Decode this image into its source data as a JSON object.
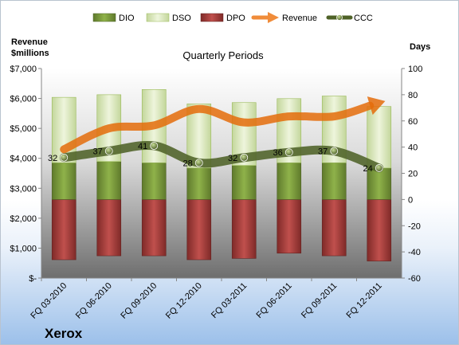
{
  "company_label": "Xerox",
  "chart_data": {
    "type": "bar",
    "title": "Quarterly Periods",
    "left_axis_label_line1": "Revenue",
    "left_axis_label_line2": "$millions",
    "right_axis_label": "Days",
    "left_ylim": [
      0,
      7000
    ],
    "left_ticks": [
      "$-",
      "$1,000",
      "$2,000",
      "$3,000",
      "$4,000",
      "$5,000",
      "$6,000",
      "$7,000"
    ],
    "right_ylim": [
      -60,
      100
    ],
    "right_ticks": [
      "-60",
      "-40",
      "-20",
      "0",
      "20",
      "40",
      "60",
      "80",
      "100"
    ],
    "categories": [
      "FQ 03-2010",
      "FQ 06-2010",
      "FQ 09-2010",
      "FQ 12-2010",
      "FQ 03-2011",
      "FQ 06-2011",
      "FQ 09-2011",
      "FQ 12-2011"
    ],
    "grid": false,
    "legend_position": "top",
    "series": [
      {
        "name": "DIO",
        "kind": "bar",
        "axis": "right",
        "color": "#77933c",
        "values": [
          28,
          29,
          28,
          24,
          26,
          28,
          28,
          24
        ]
      },
      {
        "name": "DSO",
        "kind": "bar",
        "axis": "right",
        "color": "#d7e4bd",
        "values": [
          50,
          51,
          56,
          49,
          48,
          49,
          51,
          47
        ]
      },
      {
        "name": "DPO",
        "kind": "bar",
        "axis": "right",
        "color": "#953735",
        "values": [
          -46,
          -43,
          -43,
          -46,
          -45,
          -41,
          -43,
          -47
        ]
      },
      {
        "name": "Revenue",
        "kind": "line",
        "axis": "left",
        "color": "#e46c0a",
        "values": [
          4300,
          5000,
          5100,
          5650,
          5200,
          5400,
          5400,
          5850
        ]
      },
      {
        "name": "CCC",
        "kind": "line",
        "axis": "right",
        "color": "#4f6228",
        "values": [
          32,
          37,
          41,
          28,
          32,
          36,
          37,
          24
        ]
      }
    ]
  }
}
